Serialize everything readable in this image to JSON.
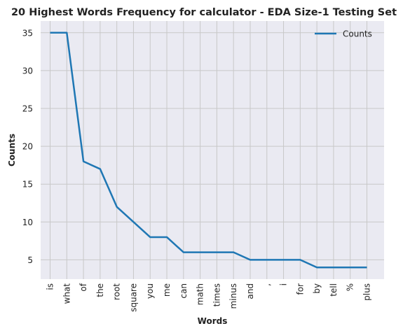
{
  "chart_data": {
    "type": "line",
    "title": "20 Highest Words Frequency for calculator - EDA Size-1 Testing Set",
    "xlabel": "Words",
    "ylabel": "Counts",
    "categories": [
      "is",
      "what",
      "of",
      "the",
      "root",
      "square",
      "you",
      "me",
      "can",
      "math",
      "times",
      "minus",
      "and",
      ",",
      "i",
      "for",
      "by",
      "tell",
      "%",
      "plus"
    ],
    "series": [
      {
        "name": "Counts",
        "values": [
          35,
          35,
          18,
          17,
          12,
          10,
          8,
          8,
          6,
          6,
          6,
          6,
          5,
          5,
          5,
          5,
          4,
          4,
          4,
          4
        ]
      }
    ],
    "ylim": [
      2.45,
      36.55
    ],
    "yticks": [
      5,
      10,
      15,
      20,
      25,
      30,
      35
    ],
    "grid": true,
    "legend_position": "top-right",
    "colors": {
      "line": "#1f77b4",
      "plot_bg": "#eaeaf2",
      "grid": "#c8c8c8"
    }
  }
}
